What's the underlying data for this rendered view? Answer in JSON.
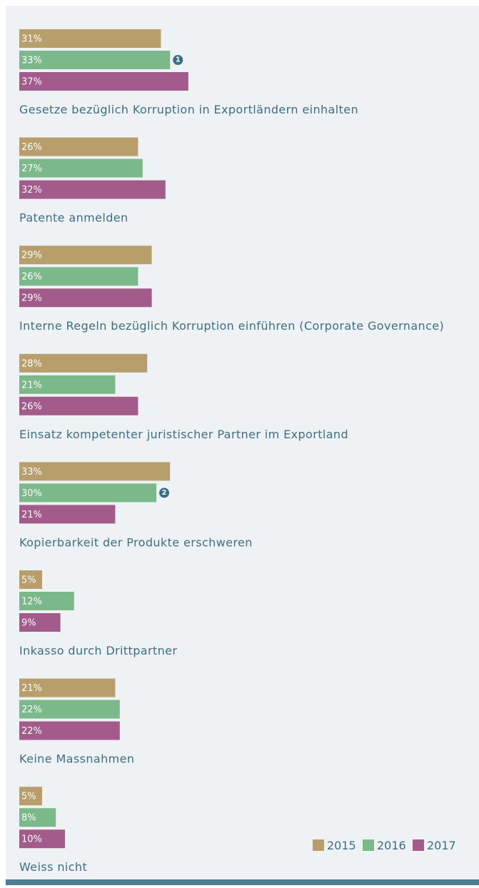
{
  "chart_data": {
    "type": "bar",
    "orientation": "horizontal",
    "categories": [
      "Gesetze bezüglich Korruption in Exportländern einhalten",
      "Patente anmelden",
      "Interne Regeln bezüglich Korruption einführen (Corporate Governance)",
      "Einsatz kompetenter juristischer Partner im Exportland",
      "Kopierbarkeit der Produkte erschweren",
      "Inkasso durch Drittpartner",
      "Keine Massnahmen",
      "Weiss nicht"
    ],
    "series": [
      {
        "name": "2015",
        "color": "#b89e6a",
        "values": [
          31,
          26,
          29,
          28,
          33,
          5,
          21,
          5
        ],
        "value_labels": [
          "31%",
          "26%",
          "29%",
          "28%",
          "33%",
          "5%",
          "21%",
          "5%"
        ]
      },
      {
        "name": "2016",
        "color": "#7bb98b",
        "values": [
          33,
          27,
          26,
          21,
          30,
          12,
          22,
          8
        ],
        "value_labels": [
          "33%",
          "27%",
          "26%",
          "21%",
          "30%",
          "12%",
          "22%",
          "8%"
        ],
        "notes": [
          "1",
          null,
          null,
          null,
          "2",
          null,
          null,
          null
        ]
      },
      {
        "name": "2017",
        "color": "#a25b8b",
        "values": [
          37,
          32,
          29,
          26,
          21,
          9,
          22,
          10
        ],
        "value_labels": [
          "37%",
          "32%",
          "29%",
          "26%",
          "21%",
          "9%",
          "22%",
          "10%"
        ]
      }
    ],
    "legend": "bottom-right"
  }
}
